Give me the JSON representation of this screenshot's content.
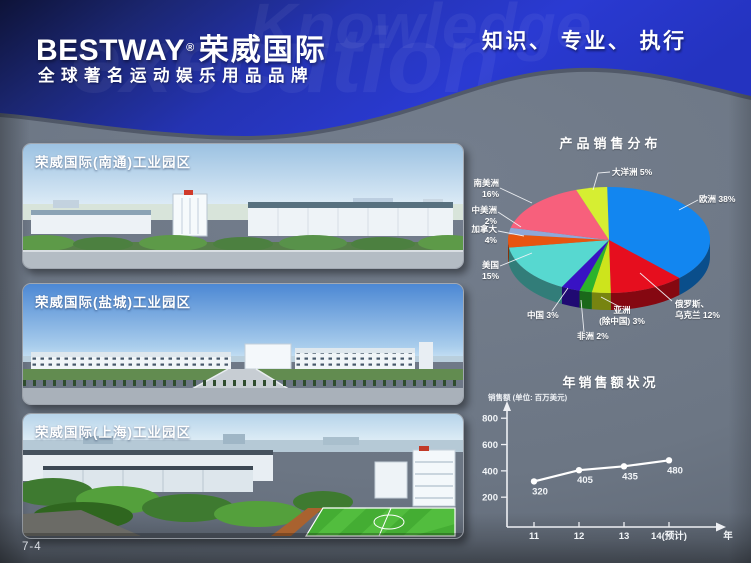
{
  "header": {
    "brand": "BESTWAY",
    "reg": "®",
    "brand_cn": "荣威国际",
    "tagline": "全球著名运动娱乐用品品牌",
    "slogan": "知识、 专业、 执行",
    "watermark_left": "execution",
    "watermark_right": "Knowledge",
    "colors": {
      "header_deep_navy": "#0e1338",
      "header_bright_blue": "#2a3ad2",
      "body_gray": "#6c7684"
    }
  },
  "page_number": "7-4",
  "parks": [
    {
      "label": "荣威国际(南通)工业园区"
    },
    {
      "label": "荣威国际(盐城)工业园区"
    },
    {
      "label": "荣威国际(上海)工业园区"
    }
  ],
  "chart_data": [
    {
      "type": "pie",
      "title": "产品销售分布",
      "style": "3d-pie",
      "legend_position": "callout-labels",
      "slices": [
        {
          "label": "欧洲",
          "value": 38,
          "color": "#1286f0",
          "callout": [
            "欧洲 38%"
          ]
        },
        {
          "label": "俄罗斯、乌克兰",
          "value": 12,
          "color": "#e60e1e",
          "callout": [
            "俄罗斯、",
            "乌克兰 12%"
          ]
        },
        {
          "label": "亚洲(除中国)",
          "value": 3,
          "color": "#cde41c",
          "callout": [
            "亚洲",
            "(除中国) 3%"
          ]
        },
        {
          "label": "非洲",
          "value": 2,
          "color": "#2cb32c",
          "callout": [
            "非洲 2%"
          ]
        },
        {
          "label": "中国",
          "value": 3,
          "color": "#3812c4",
          "callout": [
            "中国 3%"
          ]
        },
        {
          "label": "美国",
          "value": 15,
          "color": "#57d8d0",
          "callout": [
            "美国",
            "15%"
          ]
        },
        {
          "label": "加拿大",
          "value": 4,
          "color": "#e85510",
          "callout": [
            "加拿大",
            "4%"
          ]
        },
        {
          "label": "中美洲",
          "value": 2,
          "color": "#8fa8d8",
          "callout": [
            "中美洲",
            "2%"
          ]
        },
        {
          "label": "南美洲",
          "value": 16,
          "color": "#f7607c",
          "callout": [
            "南美洲",
            "16%"
          ]
        },
        {
          "label": "大洋洲",
          "value": 5,
          "color": "#d6ee32",
          "callout": [
            "大洋洲 5%"
          ]
        }
      ]
    },
    {
      "type": "line",
      "title": "年销售额状况",
      "ylabel": "销售额 (单位: 百万美元)",
      "xlabel": "年",
      "x": [
        "11",
        "12",
        "13",
        "14(预计)"
      ],
      "values": [
        320,
        405,
        435,
        480
      ],
      "yticks": [
        200,
        400,
        600,
        800
      ],
      "ylim": [
        0,
        900
      ],
      "grid": false,
      "line_color": "#ffffff",
      "marker": "circle"
    }
  ]
}
